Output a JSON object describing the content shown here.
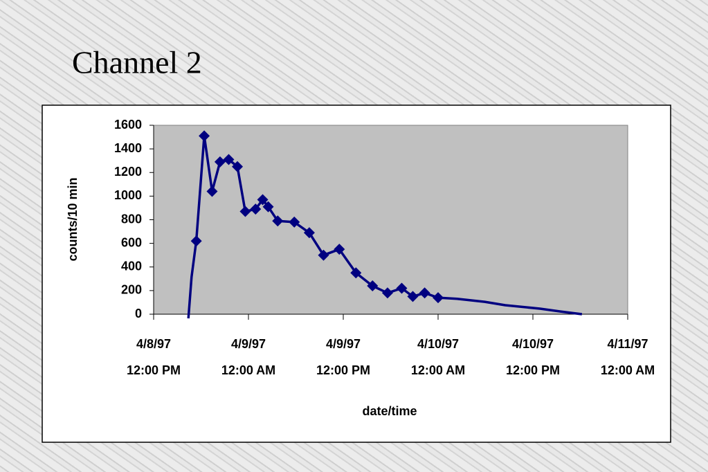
{
  "chart_data": {
    "type": "line",
    "title": "Channel 2",
    "x_label": "date/time",
    "y_label": "counts/10 min",
    "x": [
      "1997-04-08T16:24",
      "1997-04-08T16:48",
      "1997-04-08T17:24",
      "1997-04-08T18:24",
      "1997-04-08T19:24",
      "1997-04-08T20:24",
      "1997-04-08T21:30",
      "1997-04-08T22:36",
      "1997-04-08T23:36",
      "1997-04-09T00:54",
      "1997-04-09T01:48",
      "1997-04-09T02:30",
      "1997-04-09T03:42",
      "1997-04-09T05:48",
      "1997-04-09T07:42",
      "1997-04-09T09:30",
      "1997-04-09T11:30",
      "1997-04-09T13:36",
      "1997-04-09T15:42",
      "1997-04-09T17:36",
      "1997-04-09T19:24",
      "1997-04-09T20:48",
      "1997-04-09T22:18",
      "1997-04-10T00:00",
      "1997-04-10T02:24",
      "1997-04-10T05:54",
      "1997-04-10T08:30",
      "1997-04-10T12:54",
      "1997-04-10T15:30",
      "1997-04-10T18:12"
    ],
    "values": [
      -35,
      316,
      620,
      1510,
      1040,
      1290,
      1310,
      1250,
      870,
      890,
      970,
      910,
      790,
      780,
      690,
      500,
      550,
      350,
      240,
      180,
      220,
      150,
      180,
      140,
      130,
      105,
      76,
      47,
      23,
      0
    ],
    "marker_shown": [
      false,
      false,
      true,
      true,
      true,
      true,
      true,
      true,
      true,
      true,
      true,
      true,
      true,
      true,
      true,
      true,
      true,
      true,
      true,
      true,
      true,
      true,
      true,
      true,
      false,
      false,
      false,
      false,
      false,
      false
    ],
    "color": "#000080",
    "marker": "diamond",
    "plot_background": "#c0c0c0",
    "xlim": [
      "1997-04-08T12:00",
      "1997-04-11T00:00"
    ],
    "xticks": [
      {
        "value": "1997-04-08T12:00",
        "label": "4/8/97\n12:00 PM"
      },
      {
        "value": "1997-04-09T00:00",
        "label": "4/9/97\n12:00 AM"
      },
      {
        "value": "1997-04-09T12:00",
        "label": "4/9/97\n12:00 PM"
      },
      {
        "value": "1997-04-10T00:00",
        "label": "4/10/97\n12:00 AM"
      },
      {
        "value": "1997-04-10T12:00",
        "label": "4/10/97\n12:00 PM"
      },
      {
        "value": "1997-04-11T00:00",
        "label": "4/11/97\n12:00 AM"
      }
    ],
    "ylim": [
      0,
      1600
    ],
    "yticks": [
      0,
      200,
      400,
      600,
      800,
      1000,
      1200,
      1400,
      1600
    ]
  }
}
